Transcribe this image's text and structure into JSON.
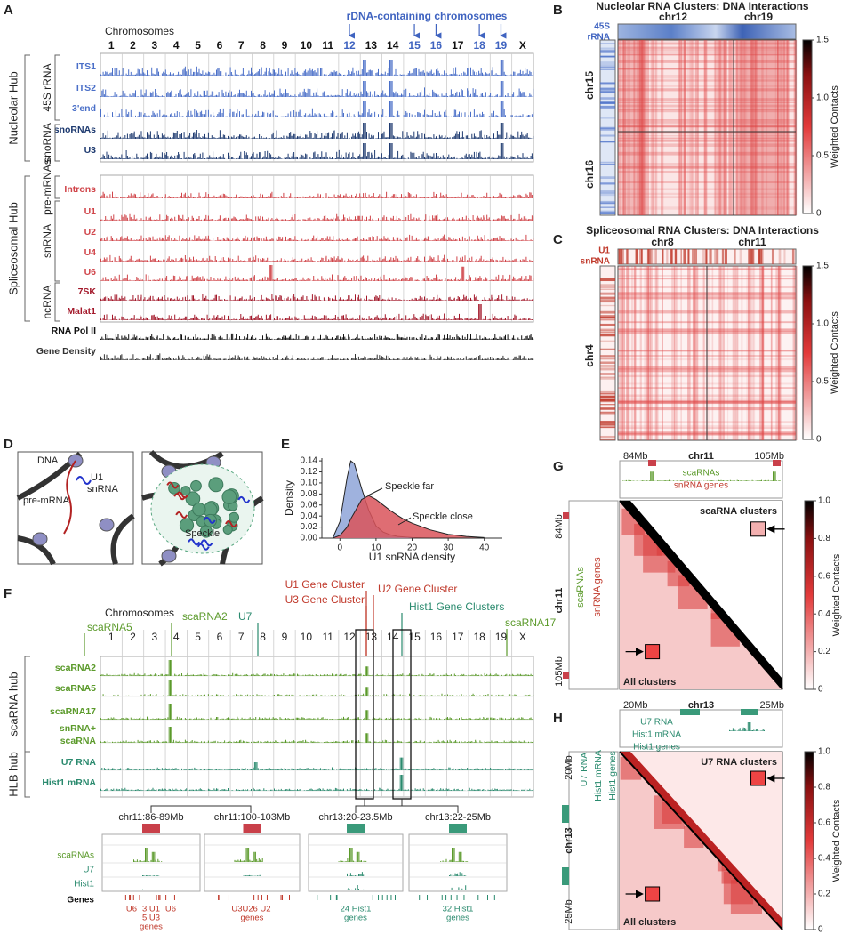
{
  "panel_letters": [
    "A",
    "B",
    "C",
    "D",
    "E",
    "F",
    "G",
    "H"
  ],
  "A": {
    "axis_title": "Chromosomes",
    "chromosomes": [
      "1",
      "2",
      "3",
      "4",
      "5",
      "6",
      "7",
      "8",
      "9",
      "10",
      "11",
      "12",
      "13",
      "14",
      "15",
      "16",
      "17",
      "18",
      "19",
      "X"
    ],
    "highlight_label": "rDNA-containing chromosomes",
    "highlight_index": [
      11,
      14,
      15,
      17,
      18
    ],
    "highlight_color": "#3f63c0",
    "hubs": [
      "Nucleolar Hub",
      "Spliceosomal Hub"
    ],
    "groups": [
      "45S rRNA",
      "snoRNA",
      "pre-mRNAs",
      "snRNA",
      "ncRNA"
    ],
    "tracks": [
      {
        "name": "ITS1",
        "color": "#4a6fc8"
      },
      {
        "name": "ITS2",
        "color": "#4a6fc8"
      },
      {
        "name": "3'end",
        "color": "#4a6fc8"
      },
      {
        "name": "snoRNAs",
        "color": "#1e3a70"
      },
      {
        "name": "U3",
        "color": "#1e3a70"
      },
      {
        "name": "Introns",
        "color": "#d0454a"
      },
      {
        "name": "U1",
        "color": "#d0454a"
      },
      {
        "name": "U2",
        "color": "#d0454a"
      },
      {
        "name": "U4",
        "color": "#d0454a"
      },
      {
        "name": "U6",
        "color": "#d0454a"
      },
      {
        "name": "7SK",
        "color": "#a3182a"
      },
      {
        "name": "Malat1",
        "color": "#a3182a"
      },
      {
        "name": "RNA Pol II",
        "color": "#111111"
      },
      {
        "name": "Gene Density",
        "color": "#333333"
      }
    ]
  },
  "B": {
    "title": "Nucleolar RNA Clusters: DNA Interactions",
    "top_label": [
      "45S",
      "rRNA"
    ],
    "label_color": "#3f63c0",
    "col_labels": [
      "chr12",
      "chr19"
    ],
    "row_labels": [
      "chr15",
      "chr16"
    ],
    "colorbar_ticks": [
      "0",
      "0.5",
      "1.0",
      "1.5"
    ],
    "colorbar_label": "Weighted Contacts"
  },
  "C": {
    "title": "Spliceosomal RNA Clusters: DNA Interactions",
    "top_label": [
      "U1",
      "snRNA"
    ],
    "label_color": "#c0392b",
    "col_labels": [
      "chr8",
      "chr11"
    ],
    "row_labels": [
      "chr4"
    ],
    "colorbar_ticks": [
      "0",
      "0.5",
      "1.0",
      "1.5"
    ],
    "colorbar_label": "Weighted Contacts"
  },
  "D": {
    "labels": [
      "DNA",
      "pre-mRNA",
      "U1",
      "snRNA",
      "Speckle"
    ]
  },
  "chart_data": {
    "type": "area",
    "x": [
      -2,
      0,
      2,
      3,
      4,
      6,
      8,
      10,
      12,
      14,
      16,
      18,
      20,
      25,
      30,
      35,
      40
    ],
    "series": [
      {
        "name": "Speckle far",
        "color": "#8ea4d8",
        "values": [
          0,
          0.03,
          0.11,
          0.14,
          0.135,
          0.09,
          0.05,
          0.022,
          0.011,
          0.006,
          0.003,
          0.002,
          0.001,
          0,
          0,
          0,
          0
        ]
      },
      {
        "name": "Speckle close",
        "color": "#d9545a",
        "values": [
          0,
          0.005,
          0.02,
          0.035,
          0.046,
          0.07,
          0.077,
          0.07,
          0.06,
          0.05,
          0.041,
          0.033,
          0.027,
          0.015,
          0.007,
          0.003,
          0.001
        ]
      }
    ],
    "xlabel": "U1 snRNA density",
    "ylabel": "Density",
    "xlim": [
      -5,
      45
    ],
    "ylim": [
      0,
      0.145
    ],
    "xticks": [
      0,
      10,
      20,
      30,
      40
    ],
    "yticks": [
      {
        "value": 0,
        "label": "0.00"
      },
      0.02,
      0.04,
      0.06,
      0.08,
      {
        "value": 0.1,
        "label": "0.10"
      },
      0.12,
      0.14
    ]
  },
  "F": {
    "axis_title": "Chromosomes",
    "chromosomes": [
      "1",
      "2",
      "3",
      "4",
      "5",
      "6",
      "7",
      "8",
      "9",
      "10",
      "11",
      "12",
      "13",
      "14",
      "15",
      "16",
      "17",
      "18",
      "19",
      "X"
    ],
    "annotations": [
      {
        "text": "scaRNA5",
        "color": "#5b9a2b"
      },
      {
        "text": "scaRNA2",
        "color": "#5b9a2b"
      },
      {
        "text": "U7",
        "color": "#2a8a6e"
      },
      {
        "text": "U1 Gene Cluster",
        "color": "#c0392b"
      },
      {
        "text": "U3 Gene Cluster",
        "color": "#c0392b"
      },
      {
        "text": "U2 Gene Cluster",
        "color": "#c0392b"
      },
      {
        "text": "Hist1 Gene Clusters",
        "color": "#2a8a6e"
      },
      {
        "text": "scaRNA17",
        "color": "#5b9a2b"
      }
    ],
    "hubs": [
      "scaRNA hub",
      "HLB hub"
    ],
    "tracks": [
      {
        "label": [
          "scaRNA2"
        ],
        "color": "#5b9a2b"
      },
      {
        "label": [
          "scaRNA5"
        ],
        "color": "#5b9a2b"
      },
      {
        "label": [
          "scaRNA17"
        ],
        "color": "#5b9a2b"
      },
      {
        "label": [
          "snRNA+",
          "scaRNA"
        ],
        "color": "#5b9a2b"
      },
      {
        "label": [
          "U7 RNA"
        ],
        "color": "#2a8a6e"
      },
      {
        "label": [
          "Hist1 mRNA"
        ],
        "color": "#2a8a6e"
      }
    ],
    "zoom_rows": [
      {
        "name": "scaRNAs",
        "color": "#5b9a2b"
      },
      {
        "name": "U7",
        "color": "#2a8a6e"
      },
      {
        "name": "Hist1",
        "color": "#2a8a6e"
      },
      {
        "name": "Genes",
        "color": "#111111"
      }
    ],
    "zooms": [
      {
        "title": "chr11:86-89Mb",
        "color": "#c9404a",
        "gene_labels": [
          [
            "U6",
            "3 U1",
            "U6"
          ],
          [
            "5 U3"
          ],
          [
            "genes"
          ]
        ]
      },
      {
        "title": "chr11:100-103Mb",
        "color": "#c9404a",
        "gene_labels": [
          [
            "U3U2",
            "6 U2"
          ],
          [
            "genes"
          ]
        ]
      },
      {
        "title": "chr13:20-23.5Mb",
        "color": "#3a9a7a",
        "gene_labels": [
          [
            "24 Hist1"
          ],
          [
            "genes"
          ]
        ]
      },
      {
        "title": "chr13:22-25Mb",
        "color": "#3a9a7a",
        "gene_labels": [
          [
            "32 Hist1"
          ],
          [
            "genes"
          ]
        ]
      }
    ]
  },
  "G": {
    "top_ticks": [
      "84Mb",
      "105Mb"
    ],
    "chrom": "chr11",
    "tracks": [
      {
        "name": "scaRNAs",
        "color": "#5b9a2b"
      },
      {
        "name": "snRNA genes",
        "color": "#c0392b"
      }
    ],
    "upper_label": "scaRNA clusters",
    "lower_label": "All clusters",
    "colorbar_ticks": [
      "0",
      "0.2",
      "0.4",
      "0.6",
      "0.8",
      "1.0"
    ],
    "colorbar_label": "Weighted Contacts"
  },
  "H": {
    "top_ticks": [
      "20Mb",
      "25Mb"
    ],
    "chrom": "chr13",
    "tracks": [
      {
        "name": "U7 RNA",
        "color": "#2a8a6e"
      },
      {
        "name": "Hist1 mRNA",
        "color": "#2a8a6e"
      },
      {
        "name": "Hist1 genes",
        "color": "#2a8a6e"
      }
    ],
    "upper_label": "U7 RNA clusters",
    "lower_label": "All clusters",
    "colorbar_ticks": [
      "0",
      "0.2",
      "0.4",
      "0.6",
      "0.8",
      "1.0"
    ],
    "colorbar_label": "Weighted Contacts"
  }
}
